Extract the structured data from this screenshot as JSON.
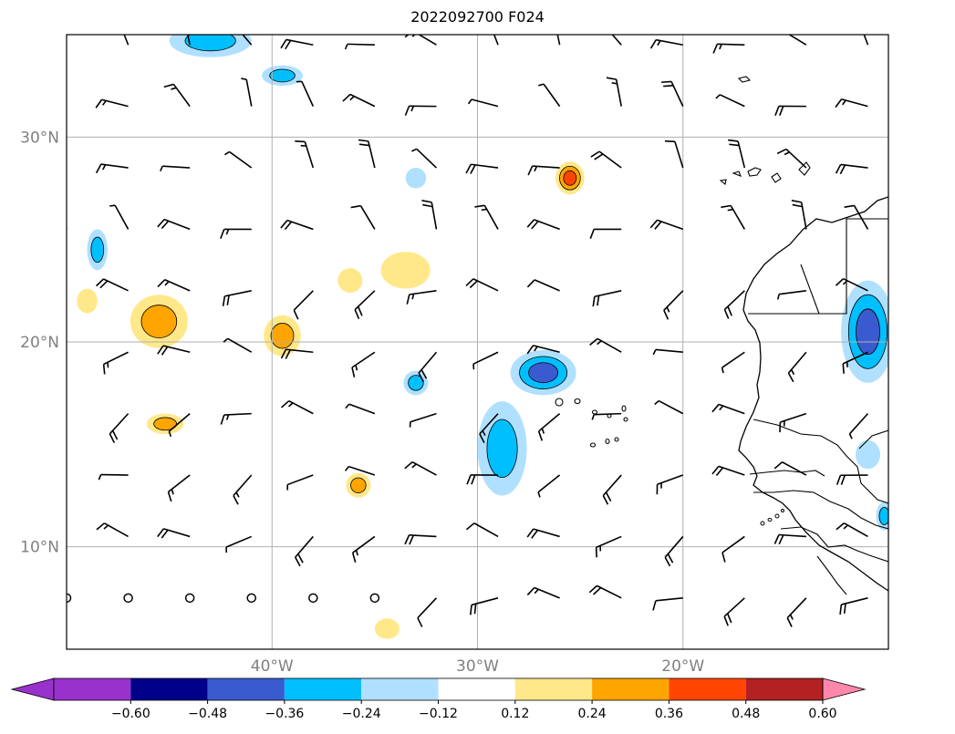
{
  "title": "2022092700 F024",
  "map": {
    "lon_range": [
      -50,
      -10
    ],
    "lat_range": [
      5,
      35
    ],
    "gridlines": true,
    "lat_labels": [
      "30°N",
      "20°N",
      "10°N"
    ],
    "lat_values": [
      30,
      20,
      10
    ],
    "lon_labels": [
      "40°W",
      "30°W",
      "20°W"
    ],
    "lon_values": [
      -40,
      -30,
      -20
    ]
  },
  "colorbar": {
    "extend": "both",
    "colors": [
      "#9932cc",
      "#00008b",
      "#3a5bd0",
      "#00bfff",
      "#b0e0ff",
      "#ffffff",
      "#ffe88a",
      "#ffa500",
      "#ff4500",
      "#b22222",
      "#ff88aa"
    ],
    "tick_labels": [
      "−0.60",
      "−0.48",
      "−0.36",
      "−0.24",
      "−0.12",
      "0.12",
      "0.24",
      "0.36",
      "0.48",
      "0.60"
    ]
  },
  "wind_barbs": {
    "lats": [
      34.5,
      31.5,
      28.5,
      25.5,
      22.5,
      19.5,
      16.5,
      13.5,
      10.5,
      7.5
    ],
    "lons": [
      -50,
      -47,
      -44,
      -41,
      -38,
      -35,
      -32,
      -29,
      -26,
      -23,
      -20,
      -17,
      -14,
      -11
    ]
  },
  "features": [
    {
      "lon": -45.5,
      "lat": 21.0,
      "level": 0.3,
      "rx": 1.4,
      "ry": 1.3
    },
    {
      "lon": -39.5,
      "lat": 20.3,
      "level": 0.28,
      "rx": 0.9,
      "ry": 1.0
    },
    {
      "lon": -45.2,
      "lat": 16.0,
      "level": 0.26,
      "rx": 0.9,
      "ry": 0.5
    },
    {
      "lon": -49.0,
      "lat": 22.0,
      "level": 0.14,
      "rx": 0.5,
      "ry": 0.6
    },
    {
      "lon": -36.2,
      "lat": 23.0,
      "level": 0.18,
      "rx": 0.6,
      "ry": 0.6
    },
    {
      "lon": -33.5,
      "lat": 23.5,
      "level": 0.2,
      "rx": 1.2,
      "ry": 0.9
    },
    {
      "lon": -35.8,
      "lat": 13.0,
      "level": 0.26,
      "rx": 0.6,
      "ry": 0.6
    },
    {
      "lon": -34.4,
      "lat": 6.0,
      "level": 0.15,
      "rx": 0.6,
      "ry": 0.5
    },
    {
      "lon": -25.5,
      "lat": 28.0,
      "level": 0.38,
      "rx": 0.7,
      "ry": 0.8
    },
    {
      "lon": -48.5,
      "lat": 24.5,
      "level": -0.3,
      "rx": 0.5,
      "ry": 1.0
    },
    {
      "lon": -43.0,
      "lat": 34.7,
      "level": -0.3,
      "rx": 2.0,
      "ry": 0.8
    },
    {
      "lon": -39.5,
      "lat": 33.0,
      "level": -0.28,
      "rx": 1.0,
      "ry": 0.5
    },
    {
      "lon": -33.0,
      "lat": 28.0,
      "level": -0.2,
      "rx": 0.5,
      "ry": 0.5
    },
    {
      "lon": -33.0,
      "lat": 18.0,
      "level": -0.28,
      "rx": 0.6,
      "ry": 0.6
    },
    {
      "lon": -26.8,
      "lat": 18.5,
      "level": -0.4,
      "rx": 1.6,
      "ry": 1.1
    },
    {
      "lon": -28.8,
      "lat": 14.8,
      "level": -0.34,
      "rx": 1.2,
      "ry": 2.3
    },
    {
      "lon": -11.0,
      "lat": 20.5,
      "level": -0.45,
      "rx": 1.3,
      "ry": 2.5
    },
    {
      "lon": -11.0,
      "lat": 14.5,
      "level": -0.2,
      "rx": 0.6,
      "ry": 0.7
    },
    {
      "lon": -10.2,
      "lat": 11.5,
      "level": -0.3,
      "rx": 0.4,
      "ry": 0.7
    }
  ]
}
